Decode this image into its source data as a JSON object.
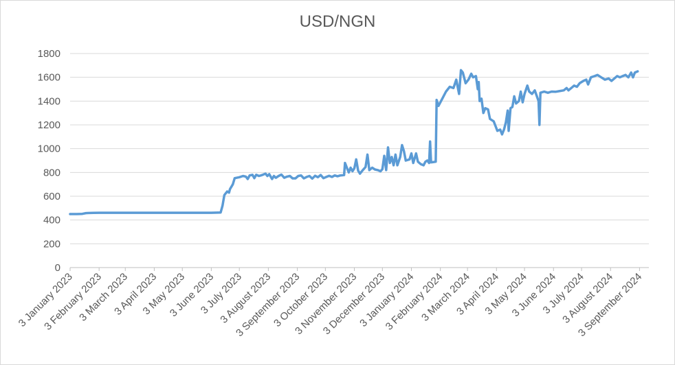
{
  "chart_data": {
    "type": "line",
    "title": "USD/NGN",
    "xlabel": "",
    "ylabel": "",
    "ylim": [
      0,
      1800
    ],
    "yticks": [
      0,
      200,
      400,
      600,
      800,
      1000,
      1200,
      1400,
      1600,
      1800
    ],
    "xlim": [
      "2023-01-03",
      "2024-09-13"
    ],
    "xticks": [
      {
        "date": "2023-01-03",
        "label": "3 January 2023"
      },
      {
        "date": "2023-02-03",
        "label": "3 February 2023"
      },
      {
        "date": "2023-03-03",
        "label": "3 March 2023"
      },
      {
        "date": "2023-04-03",
        "label": "3 April 2023"
      },
      {
        "date": "2023-05-03",
        "label": "3 May 2023"
      },
      {
        "date": "2023-06-03",
        "label": "3 June 2023"
      },
      {
        "date": "2023-07-03",
        "label": "3 July 2023"
      },
      {
        "date": "2023-08-03",
        "label": "3 August 2023"
      },
      {
        "date": "2023-09-03",
        "label": "3 September 2023"
      },
      {
        "date": "2023-10-03",
        "label": "3 October 2023"
      },
      {
        "date": "2023-11-03",
        "label": "3 November 2023"
      },
      {
        "date": "2023-12-03",
        "label": "3 December 2023"
      },
      {
        "date": "2024-01-03",
        "label": "3 January 2024"
      },
      {
        "date": "2024-02-03",
        "label": "3 February 2024"
      },
      {
        "date": "2024-03-03",
        "label": "3 March 2024"
      },
      {
        "date": "2024-04-03",
        "label": "3 April 2024"
      },
      {
        "date": "2024-05-03",
        "label": "3 May 2024"
      },
      {
        "date": "2024-06-03",
        "label": "3 June 2024"
      },
      {
        "date": "2024-07-03",
        "label": "3 July 2024"
      },
      {
        "date": "2024-08-03",
        "label": "3 August 2024"
      },
      {
        "date": "2024-09-03",
        "label": "3 September 2024"
      }
    ],
    "grid": true,
    "legend": "none",
    "series": [
      {
        "color": "#5b9bd5",
        "points": [
          [
            "2023-01-03",
            450
          ],
          [
            "2023-01-10",
            450
          ],
          [
            "2023-01-16",
            452
          ],
          [
            "2023-01-20",
            458
          ],
          [
            "2023-01-28",
            460
          ],
          [
            "2023-02-03",
            461
          ],
          [
            "2023-03-03",
            461
          ],
          [
            "2023-04-03",
            461
          ],
          [
            "2023-05-03",
            461
          ],
          [
            "2023-06-03",
            461
          ],
          [
            "2023-06-13",
            463
          ],
          [
            "2023-06-15",
            520
          ],
          [
            "2023-06-17",
            610
          ],
          [
            "2023-06-20",
            640
          ],
          [
            "2023-06-22",
            630
          ],
          [
            "2023-06-23",
            660
          ],
          [
            "2023-06-26",
            700
          ],
          [
            "2023-06-28",
            752
          ],
          [
            "2023-07-03",
            760
          ],
          [
            "2023-07-07",
            770
          ],
          [
            "2023-07-10",
            765
          ],
          [
            "2023-07-12",
            745
          ],
          [
            "2023-07-14",
            775
          ],
          [
            "2023-07-17",
            780
          ],
          [
            "2023-07-19",
            752
          ],
          [
            "2023-07-21",
            780
          ],
          [
            "2023-07-24",
            770
          ],
          [
            "2023-07-26",
            775
          ],
          [
            "2023-07-28",
            780
          ],
          [
            "2023-07-31",
            790
          ],
          [
            "2023-08-02",
            770
          ],
          [
            "2023-08-04",
            785
          ],
          [
            "2023-08-07",
            745
          ],
          [
            "2023-08-09",
            770
          ],
          [
            "2023-08-11",
            755
          ],
          [
            "2023-08-14",
            770
          ],
          [
            "2023-08-17",
            782
          ],
          [
            "2023-08-20",
            755
          ],
          [
            "2023-08-23",
            765
          ],
          [
            "2023-08-26",
            770
          ],
          [
            "2023-08-29",
            750
          ],
          [
            "2023-09-01",
            750
          ],
          [
            "2023-09-04",
            770
          ],
          [
            "2023-09-07",
            775
          ],
          [
            "2023-09-10",
            750
          ],
          [
            "2023-09-13",
            762
          ],
          [
            "2023-09-16",
            770
          ],
          [
            "2023-09-19",
            748
          ],
          [
            "2023-09-22",
            772
          ],
          [
            "2023-09-25",
            760
          ],
          [
            "2023-09-28",
            778
          ],
          [
            "2023-10-01",
            752
          ],
          [
            "2023-10-04",
            762
          ],
          [
            "2023-10-07",
            772
          ],
          [
            "2023-10-10",
            762
          ],
          [
            "2023-10-13",
            775
          ],
          [
            "2023-10-16",
            768
          ],
          [
            "2023-10-19",
            775
          ],
          [
            "2023-10-23",
            778
          ],
          [
            "2023-10-24",
            880
          ],
          [
            "2023-10-26",
            840
          ],
          [
            "2023-10-28",
            800
          ],
          [
            "2023-10-30",
            840
          ],
          [
            "2023-11-01",
            810
          ],
          [
            "2023-11-03",
            835
          ],
          [
            "2023-11-05",
            910
          ],
          [
            "2023-11-07",
            815
          ],
          [
            "2023-11-09",
            790
          ],
          [
            "2023-11-12",
            820
          ],
          [
            "2023-11-15",
            845
          ],
          [
            "2023-11-17",
            950
          ],
          [
            "2023-11-19",
            820
          ],
          [
            "2023-11-22",
            840
          ],
          [
            "2023-11-25",
            825
          ],
          [
            "2023-11-28",
            820
          ],
          [
            "2023-12-01",
            810
          ],
          [
            "2023-12-03",
            828
          ],
          [
            "2023-12-05",
            940
          ],
          [
            "2023-12-07",
            820
          ],
          [
            "2023-12-09",
            1010
          ],
          [
            "2023-12-11",
            880
          ],
          [
            "2023-12-13",
            930
          ],
          [
            "2023-12-15",
            860
          ],
          [
            "2023-12-17",
            950
          ],
          [
            "2023-12-19",
            860
          ],
          [
            "2023-12-22",
            930
          ],
          [
            "2023-12-24",
            1030
          ],
          [
            "2023-12-26",
            980
          ],
          [
            "2023-12-28",
            900
          ],
          [
            "2024-01-01",
            910
          ],
          [
            "2024-01-03",
            960
          ],
          [
            "2024-01-05",
            880
          ],
          [
            "2024-01-08",
            960
          ],
          [
            "2024-01-10",
            890
          ],
          [
            "2024-01-13",
            870
          ],
          [
            "2024-01-16",
            860
          ],
          [
            "2024-01-18",
            890
          ],
          [
            "2024-01-20",
            900
          ],
          [
            "2024-01-22",
            880
          ],
          [
            "2024-01-23",
            1060
          ],
          [
            "2024-01-24",
            885
          ],
          [
            "2024-01-27",
            888
          ],
          [
            "2024-01-29",
            890
          ],
          [
            "2024-01-30",
            1410
          ],
          [
            "2024-02-01",
            1360
          ],
          [
            "2024-02-05",
            1420
          ],
          [
            "2024-02-09",
            1480
          ],
          [
            "2024-02-13",
            1520
          ],
          [
            "2024-02-17",
            1510
          ],
          [
            "2024-02-20",
            1580
          ],
          [
            "2024-02-22",
            1500
          ],
          [
            "2024-02-23",
            1460
          ],
          [
            "2024-02-25",
            1660
          ],
          [
            "2024-02-27",
            1640
          ],
          [
            "2024-03-01",
            1550
          ],
          [
            "2024-03-04",
            1580
          ],
          [
            "2024-03-07",
            1630
          ],
          [
            "2024-03-09",
            1600
          ],
          [
            "2024-03-12",
            1610
          ],
          [
            "2024-03-14",
            1500
          ],
          [
            "2024-03-15",
            1560
          ],
          [
            "2024-03-16",
            1400
          ],
          [
            "2024-03-18",
            1420
          ],
          [
            "2024-03-20",
            1300
          ],
          [
            "2024-03-22",
            1340
          ],
          [
            "2024-03-25",
            1330
          ],
          [
            "2024-03-27",
            1250
          ],
          [
            "2024-03-31",
            1230
          ],
          [
            "2024-04-04",
            1150
          ],
          [
            "2024-04-07",
            1160
          ],
          [
            "2024-04-09",
            1120
          ],
          [
            "2024-04-11",
            1160
          ],
          [
            "2024-04-13",
            1220
          ],
          [
            "2024-04-15",
            1320
          ],
          [
            "2024-04-16",
            1150
          ],
          [
            "2024-04-18",
            1340
          ],
          [
            "2024-04-20",
            1350
          ],
          [
            "2024-04-22",
            1440
          ],
          [
            "2024-04-24",
            1380
          ],
          [
            "2024-04-27",
            1400
          ],
          [
            "2024-04-29",
            1480
          ],
          [
            "2024-05-01",
            1390
          ],
          [
            "2024-05-03",
            1460
          ],
          [
            "2024-05-06",
            1530
          ],
          [
            "2024-05-08",
            1480
          ],
          [
            "2024-05-11",
            1460
          ],
          [
            "2024-05-14",
            1490
          ],
          [
            "2024-05-18",
            1400
          ],
          [
            "2024-05-19",
            1200
          ],
          [
            "2024-05-20",
            1470
          ],
          [
            "2024-05-24",
            1480
          ],
          [
            "2024-05-28",
            1470
          ],
          [
            "2024-06-01",
            1480
          ],
          [
            "2024-06-05",
            1478
          ],
          [
            "2024-06-10",
            1485
          ],
          [
            "2024-06-14",
            1490
          ],
          [
            "2024-06-17",
            1510
          ],
          [
            "2024-06-19",
            1490
          ],
          [
            "2024-06-22",
            1510
          ],
          [
            "2024-06-25",
            1530
          ],
          [
            "2024-06-28",
            1520
          ],
          [
            "2024-07-01",
            1550
          ],
          [
            "2024-07-05",
            1570
          ],
          [
            "2024-07-08",
            1580
          ],
          [
            "2024-07-10",
            1540
          ],
          [
            "2024-07-13",
            1600
          ],
          [
            "2024-07-17",
            1610
          ],
          [
            "2024-07-20",
            1620
          ],
          [
            "2024-07-24",
            1600
          ],
          [
            "2024-07-28",
            1580
          ],
          [
            "2024-08-01",
            1590
          ],
          [
            "2024-08-04",
            1570
          ],
          [
            "2024-08-07",
            1590
          ],
          [
            "2024-08-10",
            1610
          ],
          [
            "2024-08-13",
            1600
          ],
          [
            "2024-08-16",
            1610
          ],
          [
            "2024-08-19",
            1620
          ],
          [
            "2024-08-22",
            1600
          ],
          [
            "2024-08-25",
            1640
          ],
          [
            "2024-08-27",
            1600
          ],
          [
            "2024-08-29",
            1640
          ],
          [
            "2024-09-01",
            1650
          ]
        ]
      }
    ]
  }
}
